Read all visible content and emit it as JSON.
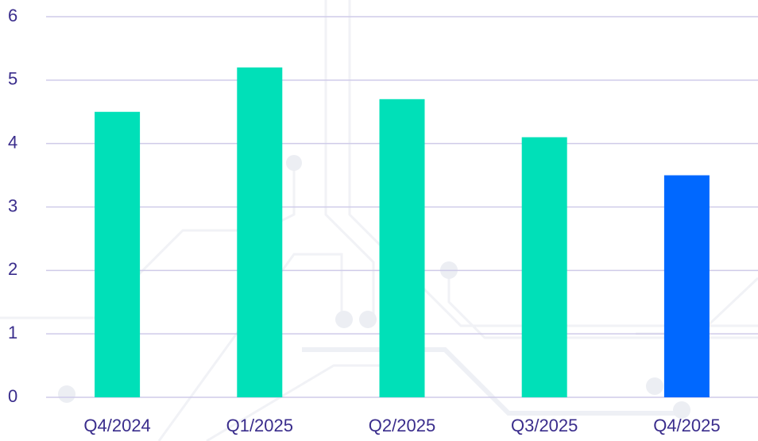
{
  "chart_data": {
    "type": "bar",
    "categories": [
      "Q4/2024",
      "Q1/2025",
      "Q2/2025",
      "Q3/2025",
      "Q4/2025"
    ],
    "values": [
      4.5,
      5.2,
      4.7,
      4.1,
      3.5
    ],
    "colors": [
      "#00e0b8",
      "#00e0b8",
      "#00e0b8",
      "#00e0b8",
      "#0068ff"
    ],
    "ylim": [
      0,
      6
    ],
    "yticks": [
      0,
      1,
      2,
      3,
      4,
      5,
      6
    ],
    "grid": true
  }
}
